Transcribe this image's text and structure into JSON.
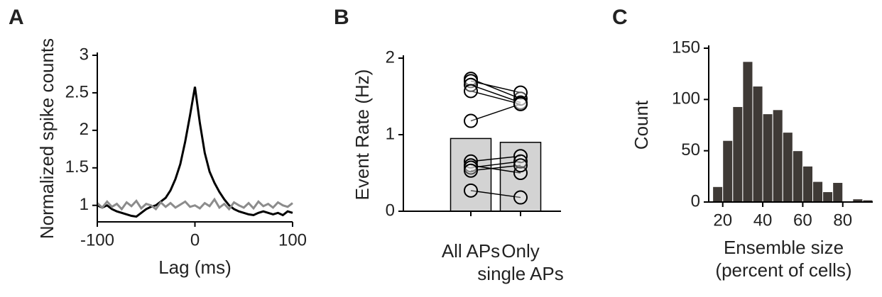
{
  "chart_data": [
    {
      "type": "line",
      "panel_label": "A",
      "xlabel": "Lag (ms)",
      "ylabel": "Normalized spike counts",
      "x": [
        -100,
        -95,
        -90,
        -85,
        -80,
        -75,
        -70,
        -65,
        -60,
        -55,
        -50,
        -45,
        -40,
        -35,
        -30,
        -25,
        -20,
        -15,
        -10,
        -5,
        0,
        5,
        10,
        15,
        20,
        25,
        30,
        35,
        40,
        45,
        50,
        55,
        60,
        65,
        70,
        75,
        80,
        85,
        90,
        95,
        100
      ],
      "series": [
        {
          "color": "#000000",
          "values": [
            1.0,
            0.97,
            1.0,
            0.95,
            0.92,
            0.9,
            0.88,
            0.86,
            0.85,
            0.9,
            0.95,
            0.98,
            1.0,
            1.05,
            1.1,
            1.2,
            1.35,
            1.55,
            1.85,
            2.2,
            2.58,
            2.1,
            1.7,
            1.45,
            1.3,
            1.18,
            1.08,
            1.0,
            0.95,
            0.92,
            0.9,
            0.88,
            0.87,
            0.9,
            0.92,
            0.9,
            0.88,
            0.9,
            0.87,
            0.92,
            0.9
          ]
        },
        {
          "color": "#8c8c8c",
          "values": [
            1.03,
            0.97,
            1.05,
            0.98,
            1.02,
            0.95,
            1.04,
            0.99,
            1.06,
            0.96,
            1.02,
            1.0,
            0.95,
            1.04,
            0.98,
            1.03,
            0.97,
            1.01,
            1.05,
            0.98,
            1.0,
            0.96,
            1.03,
            0.99,
            1.08,
            0.97,
            1.02,
            0.95,
            1.04,
            1.0,
            0.97,
            1.03,
            0.96,
            1.05,
            0.99,
            1.02,
            0.97,
            1.04,
            1.0,
            0.98,
            1.03
          ]
        }
      ],
      "xlim": [
        -100,
        100
      ],
      "xticks": [
        -100,
        0,
        100
      ],
      "ylim": [
        0.78,
        3
      ],
      "yticks": [
        1,
        1.5,
        2,
        2.5,
        3
      ]
    },
    {
      "type": "paired_bar",
      "panel_label": "B",
      "ylabel": "Event Rate (Hz)",
      "categories": [
        "All APs",
        "Only single APs"
      ],
      "values": [
        0.95,
        0.9
      ],
      "color": "#d3d3d3",
      "pairs": [
        [
          1.73,
          1.47
        ],
        [
          1.7,
          1.55
        ],
        [
          1.65,
          1.42
        ],
        [
          1.57,
          1.4
        ],
        [
          1.18,
          1.4
        ],
        [
          0.65,
          0.72
        ],
        [
          0.6,
          0.5
        ],
        [
          0.57,
          0.65
        ],
        [
          0.53,
          0.6
        ],
        [
          0.27,
          0.18
        ]
      ],
      "ylim": [
        0,
        2
      ],
      "yticks": [
        0,
        1,
        2
      ]
    },
    {
      "type": "histogram",
      "panel_label": "C",
      "xlabel": "Ensemble size (percent of cells)",
      "ylabel": "Count",
      "bins": [
        15,
        20,
        25,
        30,
        35,
        40,
        45,
        50,
        55,
        60,
        65,
        70,
        75,
        80,
        85,
        90,
        95
      ],
      "values": [
        15,
        60,
        93,
        137,
        113,
        86,
        90,
        68,
        50,
        35,
        20,
        10,
        19,
        0,
        3,
        2
      ],
      "color": "#3f3a36",
      "xlim": [
        13,
        95
      ],
      "xticks": [
        20,
        40,
        60,
        80
      ],
      "ylim": [
        0,
        150
      ],
      "yticks": [
        0,
        50,
        100,
        150
      ]
    }
  ]
}
